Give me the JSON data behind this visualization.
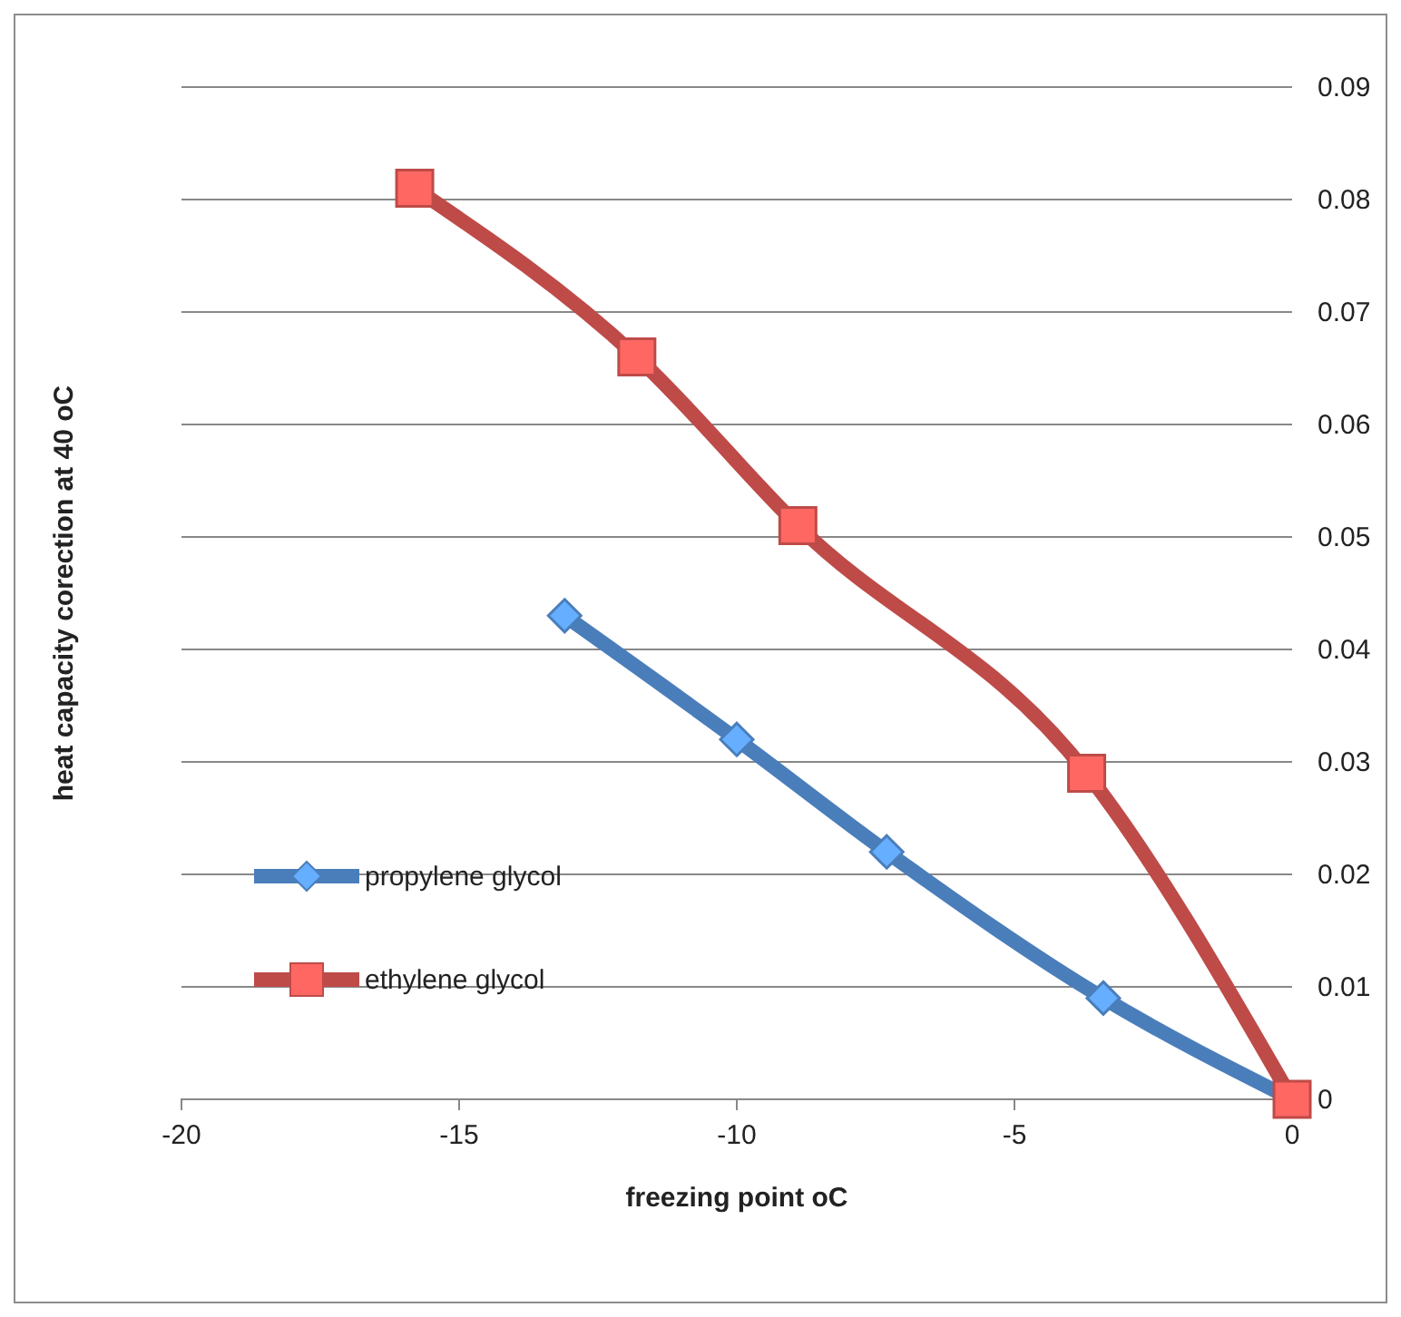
{
  "chart_data": {
    "type": "line",
    "xlabel": "freezing point oC",
    "ylabel": "heat capacity  corection at 40 oC",
    "xlim": [
      -20,
      0
    ],
    "xticks": [
      -20,
      -15,
      -10,
      -5,
      0
    ],
    "ylim": [
      0,
      0.09
    ],
    "yticks": [
      0,
      0.01,
      0.02,
      0.03,
      0.04,
      0.05,
      0.06,
      0.07,
      0.08,
      0.09
    ],
    "grid": "y",
    "legend": "left",
    "line_style": "solid",
    "series": [
      {
        "name": "propylene glycol",
        "color": "#4a7ebb",
        "marker": "diamond",
        "x": [
          -13.1,
          -10,
          -7.3,
          -3.4,
          0
        ],
        "values": [
          0.043,
          0.032,
          0.022,
          0.009,
          0
        ]
      },
      {
        "name": "ethylene glycol",
        "color": "#be4b48",
        "marker": "square",
        "x": [
          -15.8,
          -11.8,
          -8.9,
          -3.7,
          0
        ],
        "values": [
          0.081,
          0.066,
          0.051,
          0.029,
          0
        ]
      }
    ]
  }
}
